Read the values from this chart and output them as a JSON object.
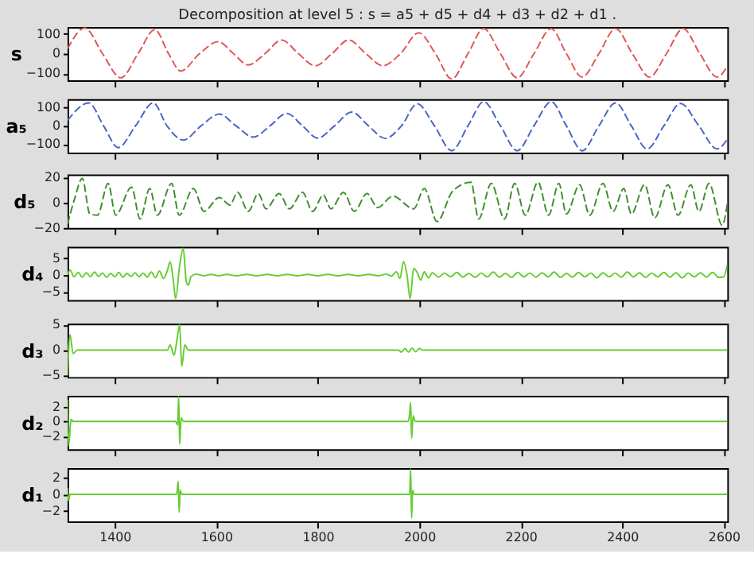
{
  "chart_data": [
    {
      "type": "line",
      "title": "Decomposition at level 5 : s = a5 + d5 + d4 + d3 + d2 + d1 .",
      "ylabel": "s",
      "color": "#e05555",
      "line_style": "dashed",
      "grid": false,
      "tick_labels": "y",
      "xlim": [
        1307,
        2607
      ],
      "xticks": [
        1400,
        1600,
        1800,
        2000,
        2200,
        2400,
        2600
      ],
      "ylim": [
        -135,
        135
      ],
      "yticks": [
        -100,
        0,
        100
      ],
      "x": [
        1307,
        1341,
        1376,
        1412,
        1446,
        1479,
        1506,
        1530,
        1567,
        1604,
        1634,
        1663,
        1696,
        1729,
        1762,
        1795,
        1828,
        1861,
        1895,
        1928,
        1963,
        1999,
        2032,
        2064,
        2096,
        2127,
        2160,
        2193,
        2226,
        2260,
        2290,
        2321,
        2354,
        2387,
        2420,
        2454,
        2487,
        2520,
        2553,
        2587,
        2607
      ],
      "values": [
        25,
        130,
        0,
        -122,
        0,
        122,
        0,
        -88,
        0,
        61,
        0,
        -57,
        0,
        69,
        0,
        -61,
        0,
        69,
        0,
        -61,
        0,
        106,
        0,
        -128,
        0,
        127,
        0,
        -122,
        0,
        127,
        0,
        -118,
        0,
        127,
        0,
        -118,
        0,
        127,
        0,
        -118,
        -63
      ]
    },
    {
      "type": "line",
      "ylabel": "a₅",
      "color": "#4a63c8",
      "line_style": "dashed",
      "grid": false,
      "tick_labels": "y",
      "xlim": [
        1307,
        2607
      ],
      "xticks": [
        1400,
        1600,
        1800,
        2000,
        2200,
        2400,
        2600
      ],
      "ylim": [
        -145,
        145
      ],
      "yticks": [
        -100,
        0,
        100
      ],
      "x": [
        1307,
        1349,
        1378,
        1407,
        1441,
        1476,
        1503,
        1535,
        1570,
        1606,
        1639,
        1673,
        1706,
        1739,
        1770,
        1800,
        1833,
        1867,
        1900,
        1933,
        1965,
        1996,
        2030,
        2064,
        2096,
        2127,
        2160,
        2193,
        2226,
        2260,
        2290,
        2321,
        2354,
        2387,
        2418,
        2449,
        2482,
        2515,
        2551,
        2587,
        2607
      ],
      "values": [
        30,
        125,
        0,
        -118,
        0,
        125,
        0,
        -77,
        0,
        64,
        0,
        -61,
        0,
        68,
        0,
        -66,
        0,
        75,
        0,
        -68,
        0,
        120,
        0,
        -135,
        0,
        131,
        0,
        -135,
        0,
        131,
        0,
        -135,
        0,
        125,
        0,
        -125,
        0,
        122,
        0,
        -125,
        -73
      ]
    },
    {
      "type": "line",
      "ylabel": "d₅",
      "color": "#3f8f2e",
      "line_style": "dashed",
      "grid": false,
      "tick_labels": "y",
      "xlim": [
        1307,
        2607
      ],
      "xticks": [
        1400,
        1600,
        1800,
        2000,
        2200,
        2400,
        2600
      ],
      "ylim": [
        -20,
        22
      ],
      "yticks": [
        -20,
        0,
        20
      ],
      "x": [
        1307,
        1321,
        1336,
        1351,
        1366,
        1387,
        1402,
        1433,
        1450,
        1469,
        1484,
        1512,
        1527,
        1555,
        1576,
        1606,
        1627,
        1642,
        1663,
        1683,
        1698,
        1724,
        1744,
        1770,
        1790,
        1811,
        1826,
        1851,
        1872,
        1897,
        1918,
        1948,
        1989,
        2010,
        2035,
        2066,
        2102,
        2117,
        2142,
        2168,
        2188,
        2209,
        2234,
        2255,
        2275,
        2290,
        2316,
        2336,
        2362,
        2382,
        2403,
        2418,
        2444,
        2464,
        2490,
        2510,
        2535,
        2551,
        2571,
        2597,
        2607
      ],
      "values": [
        -17,
        3,
        19,
        -9,
        -10,
        15,
        -10,
        12,
        -13,
        11,
        -10,
        15,
        -10,
        11,
        -7,
        4,
        -2,
        8,
        -7,
        7,
        -5,
        7,
        -5,
        8,
        -7,
        6,
        -5,
        8,
        -7,
        7,
        -4,
        5,
        -5,
        11,
        -15,
        9,
        16,
        -13,
        15,
        -13,
        15,
        -10,
        16,
        -10,
        15,
        -9,
        14,
        -10,
        15,
        -7,
        11,
        -9,
        14,
        -12,
        14,
        -10,
        14,
        -7,
        15,
        -18,
        -1
      ]
    },
    {
      "type": "line",
      "ylabel": "d₄",
      "color": "#66cc33",
      "grid": false,
      "tick_labels": "y",
      "xlim": [
        1307,
        2607
      ],
      "xticks": [
        1400,
        1600,
        1800,
        2000,
        2200,
        2400,
        2600
      ],
      "ylim": [
        -7.5,
        8.5
      ],
      "yticks": [
        -5,
        0,
        5
      ],
      "x": [
        1307,
        1312,
        1320,
        1328,
        1336,
        1344,
        1352,
        1360,
        1368,
        1376,
        1384,
        1392,
        1400,
        1408,
        1416,
        1424,
        1432,
        1440,
        1448,
        1456,
        1464,
        1472,
        1480,
        1488,
        1496,
        1504,
        1509,
        1515,
        1520,
        1528,
        1535,
        1541,
        1545,
        1550,
        1560,
        1575,
        1590,
        1605,
        1620,
        1640,
        1660,
        1680,
        1700,
        1720,
        1740,
        1760,
        1780,
        1800,
        1820,
        1840,
        1860,
        1880,
        1900,
        1920,
        1935,
        1945,
        1955,
        1962,
        1969,
        1976,
        1982,
        1989,
        1996,
        2003,
        2010,
        2018,
        2026,
        2038,
        2050,
        2062,
        2074,
        2086,
        2098,
        2110,
        2122,
        2134,
        2146,
        2158,
        2170,
        2182,
        2194,
        2206,
        2218,
        2230,
        2242,
        2254,
        2266,
        2278,
        2290,
        2302,
        2314,
        2326,
        2338,
        2350,
        2362,
        2374,
        2386,
        2398,
        2410,
        2422,
        2434,
        2446,
        2458,
        2470,
        2482,
        2494,
        2506,
        2518,
        2530,
        2542,
        2554,
        2566,
        2578,
        2590,
        2600,
        2607
      ],
      "values": [
        0,
        1.5,
        -0.5,
        0.8,
        -0.6,
        0.7,
        -0.5,
        0.9,
        -0.4,
        0.6,
        -0.7,
        0.5,
        -0.5,
        0.8,
        -0.6,
        0.5,
        -0.4,
        0.7,
        -0.5,
        0.6,
        -0.6,
        0.9,
        -0.8,
        1.2,
        -1,
        1.5,
        4,
        -1,
        -7,
        3,
        8,
        -2,
        -3,
        -0.5,
        0.3,
        -0.2,
        0.2,
        -0.2,
        0.2,
        -0.2,
        0.2,
        -0.2,
        0.2,
        -0.2,
        0.2,
        -0.2,
        0.2,
        -0.2,
        0.2,
        -0.2,
        0.2,
        -0.2,
        0.2,
        -0.2,
        0.3,
        -0.3,
        1,
        -1,
        4,
        0,
        -7,
        2,
        0.8,
        -1.5,
        1,
        -0.8,
        0.7,
        -0.6,
        0.6,
        -0.5,
        0.8,
        -0.6,
        0.5,
        -0.7,
        0.6,
        -0.5,
        0.9,
        -0.6,
        0.5,
        -0.7,
        0.8,
        -0.5,
        0.6,
        -0.6,
        0.7,
        -0.5,
        0.9,
        -0.7,
        0.5,
        -0.6,
        0.8,
        -0.5,
        0.6,
        -0.8,
        0.7,
        -0.5,
        0.6,
        -0.6,
        0.9,
        -0.5,
        0.7,
        -0.7,
        0.6,
        -0.5,
        0.8,
        -0.6,
        0.7,
        -0.8,
        0.6,
        -0.5,
        0.7,
        -0.6,
        0.8,
        -0.7,
        -0.5,
        3
      ]
    },
    {
      "type": "line",
      "ylabel": "d₃",
      "color": "#66cc33",
      "grid": false,
      "tick_labels": "y",
      "xlim": [
        1307,
        2607
      ],
      "xticks": [
        1400,
        1600,
        1800,
        2000,
        2200,
        2400,
        2600
      ],
      "ylim": [
        -5.3,
        5.2
      ],
      "yticks": [
        -5,
        0,
        5
      ],
      "x": [
        1307,
        1312,
        1318,
        1326,
        1504,
        1509,
        1517,
        1523,
        1528,
        1532,
        1538,
        1545,
        1959,
        1965,
        1972,
        1979,
        1986,
        1993,
        2000,
        2007,
        2607
      ],
      "values": [
        -5,
        3,
        -0.7,
        0,
        0,
        1,
        -1,
        2.3,
        5,
        -3.2,
        1,
        0,
        0,
        -0.4,
        0.3,
        -0.4,
        0.4,
        -0.3,
        0.3,
        0,
        0
      ]
    },
    {
      "type": "line",
      "ylabel": "d₂",
      "color": "#66cc33",
      "grid": false,
      "tick_labels": "y",
      "xlim": [
        1307,
        2607
      ],
      "xticks": [
        1400,
        1600,
        1800,
        2000,
        2200,
        2400,
        2600
      ],
      "ylim": [
        -3.8,
        3.5
      ],
      "yticks": [
        -2,
        0,
        2
      ],
      "x": [
        1307,
        1309,
        1314,
        1318,
        1520,
        1524,
        1526,
        1528,
        1531,
        1535,
        1978,
        1981,
        1983,
        1985,
        1988,
        1992,
        2607
      ],
      "values": [
        3,
        -3.3,
        0.3,
        0,
        0,
        -0.5,
        3.4,
        -3.1,
        0.5,
        0,
        0,
        1,
        2.6,
        -2.3,
        0.8,
        0,
        0
      ]
    },
    {
      "type": "line",
      "ylabel": "d₁",
      "color": "#66cc33",
      "grid": false,
      "xlim": [
        1307,
        2607
      ],
      "xticks": [
        1400,
        1600,
        1800,
        2000,
        2200,
        2400,
        2600
      ],
      "ylim": [
        -3.3,
        3.2
      ],
      "yticks": [
        -2,
        0,
        2
      ],
      "x": [
        1307,
        1309,
        1312,
        1522,
        1525,
        1527,
        1529,
        1532,
        1981,
        1983,
        1985,
        1987,
        1990,
        2607
      ],
      "values": [
        0.8,
        -0.8,
        0,
        0,
        1.6,
        -2.2,
        0.5,
        0,
        0,
        3.1,
        -2.9,
        0.5,
        0,
        0
      ]
    }
  ]
}
